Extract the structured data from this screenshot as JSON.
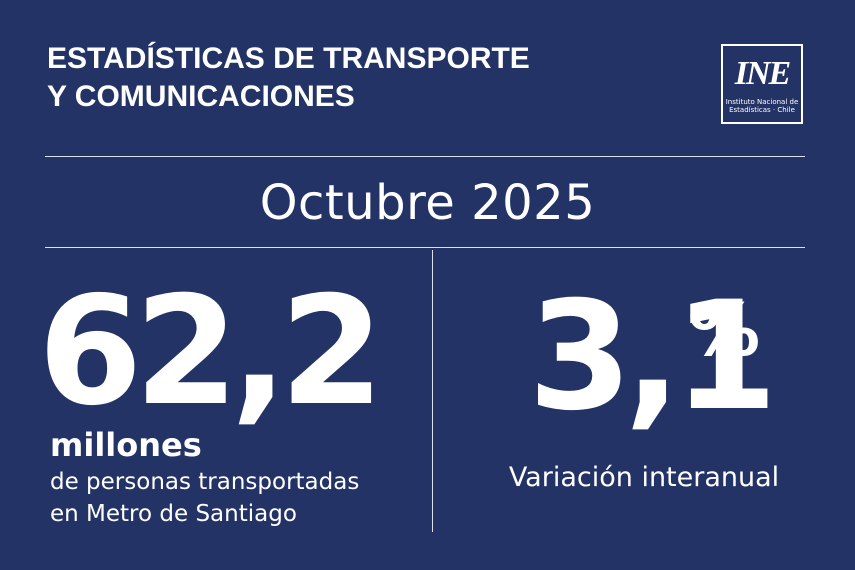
{
  "header": {
    "title_line1": "ESTADÍSTICAS DE TRANSPORTE",
    "title_line2": "Y COMUNICACIONES"
  },
  "logo": {
    "mark": "INE",
    "line1": "Instituto Nacional de",
    "line2": "Estadísticas · Chile"
  },
  "period": "Octubre 2025",
  "metric_left": {
    "value": "62,2",
    "unit": "millones",
    "description_line1": "de personas transportadas",
    "description_line2": "en Metro de Santiago"
  },
  "metric_right": {
    "value": "3,1",
    "symbol": "%",
    "label": "Variación interanual"
  },
  "colors": {
    "background": "#233366",
    "text": "#ffffff"
  }
}
